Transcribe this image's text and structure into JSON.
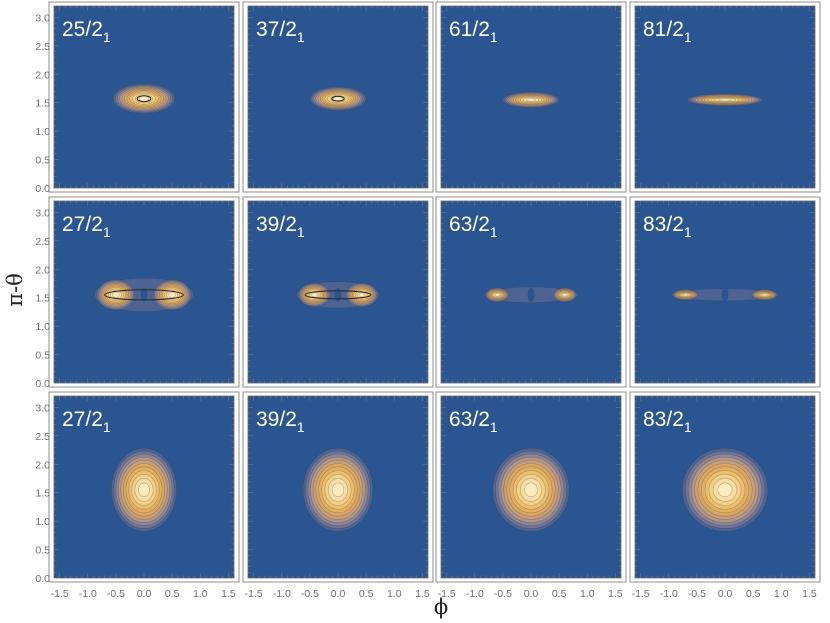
{
  "chart_data": {
    "type": "heatmap",
    "layout": {
      "rows": 3,
      "cols": 4
    },
    "xlabel": "ϕ",
    "ylabel": "π-θ",
    "xlim": [
      -1.6,
      1.6
    ],
    "ylim": [
      0,
      3.2
    ],
    "xticks": [
      -1.5,
      -1.0,
      -0.5,
      0.0,
      0.5,
      1.0,
      1.5
    ],
    "yticks": [
      0.0,
      0.5,
      1.0,
      1.5,
      2.0,
      2.5,
      3.0
    ],
    "xtick_labels": [
      "-1.5",
      "-1.0",
      "-0.5",
      "0.0",
      "0.5",
      "1.0",
      "1.5"
    ],
    "ytick_labels": [
      "0.0",
      "0.5",
      "1.0",
      "1.5",
      "2.0",
      "2.5",
      "3.0"
    ],
    "colors": {
      "background": "#2a5590",
      "levels": [
        "#2a5590",
        "#4c6394",
        "#6e7497",
        "#908592",
        "#b0978a",
        "#c99e78",
        "#d9a664",
        "#e4b060",
        "#ecc070",
        "#f3d088",
        "#f8dea4",
        "#fcebc0"
      ],
      "contour_line": "#3c3c3c"
    },
    "panels": [
      {
        "label": "25/2",
        "subscript": "1",
        "shape": "single",
        "center": [
          0.0,
          1.57
        ],
        "sx": 0.55,
        "sy": 0.26,
        "ring": true
      },
      {
        "label": "37/2",
        "subscript": "1",
        "shape": "single",
        "center": [
          0.0,
          1.57
        ],
        "sx": 0.5,
        "sy": 0.21,
        "ring": true
      },
      {
        "label": "61/2",
        "subscript": "1",
        "shape": "single",
        "center": [
          0.0,
          1.55
        ],
        "sx": 0.5,
        "sy": 0.14,
        "ring": false
      },
      {
        "label": "81/2",
        "subscript": "1",
        "shape": "single",
        "center": [
          0.0,
          1.55
        ],
        "sx": 0.67,
        "sy": 0.11,
        "ring": false
      },
      {
        "label": "27/2",
        "subscript": "1",
        "shape": "double",
        "lobe_x": 0.5,
        "center_y": 1.55,
        "sx": 0.36,
        "sy": 0.28,
        "ring": true
      },
      {
        "label": "39/2",
        "subscript": "1",
        "shape": "double",
        "lobe_x": 0.42,
        "center_y": 1.55,
        "sx": 0.3,
        "sy": 0.22,
        "ring": true
      },
      {
        "label": "63/2",
        "subscript": "1",
        "shape": "double",
        "lobe_x": 0.6,
        "center_y": 1.55,
        "sx": 0.22,
        "sy": 0.13,
        "ring": false
      },
      {
        "label": "83/2",
        "subscript": "1",
        "shape": "double",
        "lobe_x": 0.7,
        "center_y": 1.55,
        "sx": 0.24,
        "sy": 0.1,
        "ring": false
      },
      {
        "label": "27/2",
        "subscript": "1",
        "shape": "single",
        "center": [
          0.0,
          1.55
        ],
        "sx": 0.58,
        "sy": 0.73,
        "ring": false
      },
      {
        "label": "39/2",
        "subscript": "1",
        "shape": "single",
        "center": [
          0.0,
          1.55
        ],
        "sx": 0.62,
        "sy": 0.73,
        "ring": false
      },
      {
        "label": "63/2",
        "subscript": "1",
        "shape": "single",
        "center": [
          0.0,
          1.55
        ],
        "sx": 0.68,
        "sy": 0.73,
        "ring": false
      },
      {
        "label": "83/2",
        "subscript": "1",
        "shape": "single",
        "center": [
          0.0,
          1.55
        ],
        "sx": 0.76,
        "sy": 0.73,
        "ring": false
      }
    ]
  }
}
